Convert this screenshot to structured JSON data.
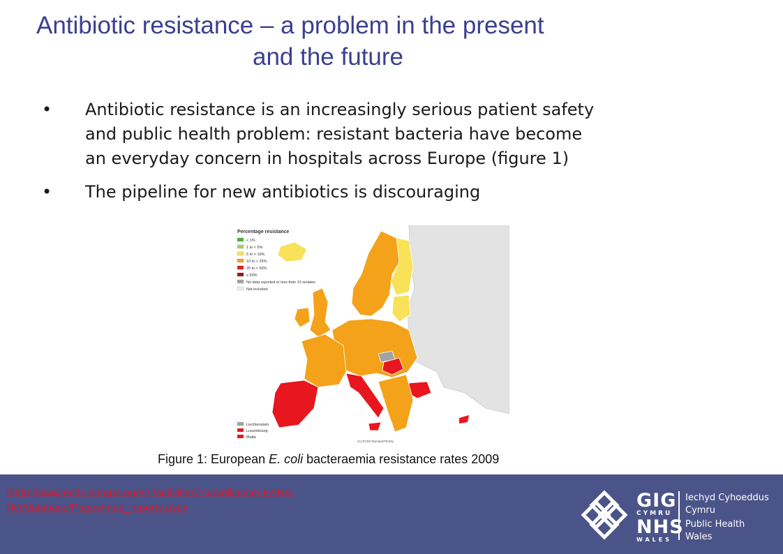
{
  "title": {
    "line1": "Antibiotic resistance – a problem in the present",
    "line2": "and the future"
  },
  "bullets": [
    {
      "marker": "•",
      "lines": [
        "Antibiotic resistance is an increasingly serious patient safety",
        "and public health problem: resistant bacteria have become",
        "an everyday concern in hospitals across Europe (figure 1)"
      ]
    },
    {
      "marker": "•",
      "lines": [
        "The pipeline for new antibiotics is discouraging"
      ]
    }
  ],
  "map": {
    "legend_title": "Percentage resistance",
    "legend": [
      {
        "label": "< 1%",
        "color": "#4caf3a"
      },
      {
        "label": "1 to < 5%",
        "color": "#a6cf6b"
      },
      {
        "label": "5 to < 10%",
        "color": "#f9e25a"
      },
      {
        "label": "10 to < 25%",
        "color": "#f3a21a"
      },
      {
        "label": "25 to < 50%",
        "color": "#e8161e"
      },
      {
        "label": "≥ 50%",
        "color": "#9b1418"
      },
      {
        "label": "No data reported or less than 10 isolates",
        "color": "#a3a3a3"
      },
      {
        "label": "Not included",
        "color": "#ececec"
      }
    ],
    "small_states": [
      {
        "label": "Liechtenstein",
        "color": "#a3a3a3"
      },
      {
        "label": "Luxembourg",
        "color": "#e8161e"
      },
      {
        "label": "Malta",
        "color": "#e8161e"
      }
    ],
    "copyright": "(C) ECDC/Dundas/TESSy"
  },
  "caption": {
    "prefix": "Figure 1: European ",
    "italic": "E. coli",
    "suffix": " bacteraemia resistance rates 2009"
  },
  "footer": {
    "link_line1": "hhttp://www.ecdc.europa.eu/en /activities/ surveillance/ EARS-",
    "link_line2": "Net/database/Pages/map_reports.aspx",
    "logo": {
      "gig": "GIG",
      "cymru": "CYMRU",
      "nhs": "NHS",
      "wales": "WALES",
      "org_line1": "Iechyd Cyhoeddus",
      "org_line2": "Cymru",
      "org_line3": "Public Health",
      "org_line4": "Wales"
    }
  }
}
